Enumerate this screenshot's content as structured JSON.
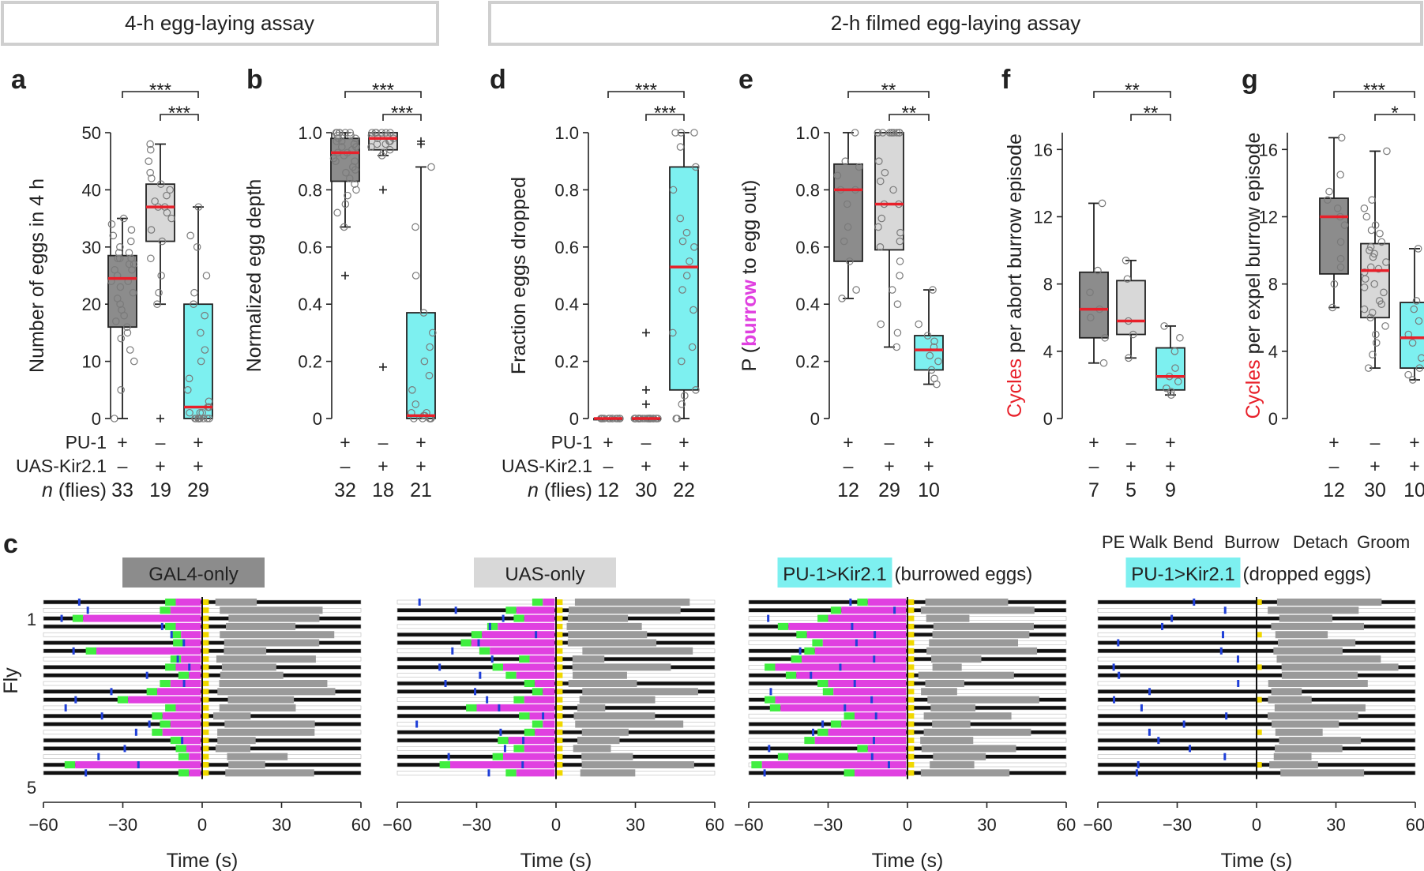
{
  "banners": [
    "4-h egg-laying assay",
    "2-h filmed egg-laying assay"
  ],
  "colors": {
    "grey": "#8c8c8c",
    "lightgrey": "#d8d8d8",
    "cyan": "#7df0f0",
    "red": "#e8202a",
    "magenta": "#e040e0",
    "green": "#40ee40",
    "blue": "#1f3fd8",
    "yellow": "#f0d800",
    "groom": "#9a9a9a"
  },
  "row_labels": [
    "PU-1",
    "UAS-Kir2.1",
    "n (flies)"
  ],
  "chart_data": [
    {
      "id": "a",
      "type": "box",
      "letter": "a",
      "ylabel": "Number of eggs in 4 h",
      "ylim": [
        0,
        50
      ],
      "yticks": [
        "0",
        "10",
        "20",
        "30",
        "40",
        "50"
      ],
      "groups": [
        {
          "genotype": [
            "+",
            "–"
          ],
          "n": "33",
          "color": "grey",
          "median": 24.5,
          "q1": 16,
          "q3": 28.5,
          "whislo": 0,
          "whishi": 35,
          "fliers": [],
          "points": [
            0,
            5,
            10,
            12,
            14,
            15,
            16,
            17,
            18,
            19,
            20,
            21,
            22,
            23,
            24,
            24,
            25,
            25,
            26,
            26,
            27,
            27,
            28,
            28,
            28,
            29,
            29,
            30,
            31,
            32,
            33,
            34,
            35
          ]
        },
        {
          "genotype": [
            "–",
            "+"
          ],
          "n": "19",
          "color": "lightgrey",
          "median": 37,
          "q1": 31,
          "q3": 41,
          "whislo": 20,
          "whishi": 48,
          "fliers": [
            0
          ],
          "points": [
            20,
            22,
            25,
            28,
            31,
            33,
            35,
            36,
            37,
            37,
            38,
            39,
            40,
            41,
            42,
            43,
            45,
            47,
            48
          ]
        },
        {
          "genotype": [
            "+",
            "+"
          ],
          "n": "29",
          "color": "cyan",
          "median": 2,
          "q1": 0,
          "q3": 20,
          "whislo": 0,
          "whishi": 37,
          "fliers": [],
          "points": [
            0,
            0,
            0,
            0,
            0,
            0,
            0,
            0,
            0,
            0,
            1,
            1,
            1,
            2,
            2,
            2,
            3,
            5,
            7,
            10,
            12,
            15,
            18,
            20,
            22,
            25,
            30,
            32,
            37
          ]
        }
      ],
      "sig": [
        "***",
        "***"
      ],
      "show_genotype_labels": true
    },
    {
      "id": "b",
      "type": "box",
      "letter": "b",
      "ylabel": "Normalized egg depth",
      "ylim": [
        0,
        1
      ],
      "yticks": [
        "0",
        "0.2",
        "0.4",
        "0.6",
        "0.8",
        "1.0"
      ],
      "groups": [
        {
          "genotype": [
            "+",
            "–"
          ],
          "n": "32",
          "color": "grey",
          "median": 0.93,
          "q1": 0.83,
          "q3": 0.98,
          "whislo": 0.67,
          "whishi": 1.0,
          "fliers": [
            0.5
          ],
          "points": [
            0.67,
            0.72,
            0.75,
            0.8,
            0.82,
            0.84,
            0.86,
            0.88,
            0.9,
            0.91,
            0.92,
            0.93,
            0.93,
            0.94,
            0.95,
            0.96,
            0.97,
            0.97,
            0.98,
            0.98,
            0.99,
            0.99,
            1.0,
            1.0,
            1.0,
            1.0,
            1.0,
            1.0,
            0.95,
            0.9,
            0.87,
            0.78
          ]
        },
        {
          "genotype": [
            "–",
            "+"
          ],
          "n": "18",
          "color": "lightgrey",
          "median": 0.98,
          "q1": 0.94,
          "q3": 1.0,
          "whislo": 0.92,
          "whishi": 1.0,
          "fliers": [
            0.8,
            0.18
          ],
          "points": [
            0.92,
            0.94,
            0.95,
            0.96,
            0.97,
            0.98,
            0.98,
            0.99,
            0.99,
            1.0,
            1.0,
            1.0,
            1.0,
            1.0,
            1.0,
            0.97,
            0.96,
            0.93
          ]
        },
        {
          "genotype": [
            "+",
            "+"
          ],
          "n": "21",
          "color": "cyan",
          "median": 0.01,
          "q1": 0.0,
          "q3": 0.37,
          "whislo": 0.0,
          "whishi": 0.88,
          "fliers": [
            0.97,
            0.96
          ],
          "points": [
            0.0,
            0.0,
            0.0,
            0.0,
            0.0,
            0.0,
            0.0,
            0.01,
            0.01,
            0.02,
            0.05,
            0.1,
            0.15,
            0.2,
            0.25,
            0.3,
            0.37,
            0.5,
            0.67,
            0.88,
            0.02
          ]
        }
      ],
      "sig": [
        "***",
        "***"
      ],
      "show_genotype_labels": false
    },
    {
      "id": "d",
      "type": "box",
      "letter": "d",
      "ylabel": "Fraction eggs dropped",
      "ylim": [
        0,
        1
      ],
      "yticks": [
        "0",
        "0.2",
        "0.4",
        "0.6",
        "0.8",
        "1.0"
      ],
      "groups": [
        {
          "genotype": [
            "+",
            "–"
          ],
          "n": "12",
          "color": "grey",
          "median": 0,
          "q1": 0,
          "q3": 0,
          "whislo": 0,
          "whishi": 0,
          "fliers": [],
          "points": [
            0,
            0,
            0,
            0,
            0,
            0,
            0,
            0,
            0,
            0,
            0,
            0
          ]
        },
        {
          "genotype": [
            "–",
            "+"
          ],
          "n": "30",
          "color": "lightgrey",
          "median": 0,
          "q1": 0,
          "q3": 0,
          "whislo": 0,
          "whishi": 0,
          "fliers": [
            0.3,
            0.1,
            0.05
          ],
          "points": [
            0,
            0,
            0,
            0,
            0,
            0,
            0,
            0,
            0,
            0,
            0,
            0,
            0,
            0,
            0,
            0,
            0,
            0,
            0,
            0,
            0,
            0,
            0,
            0,
            0,
            0,
            0
          ]
        },
        {
          "genotype": [
            "+",
            "+"
          ],
          "n": "22",
          "color": "cyan",
          "median": 0.53,
          "q1": 0.1,
          "q3": 0.88,
          "whislo": 0,
          "whishi": 1.0,
          "fliers": [],
          "points": [
            0,
            0,
            0.05,
            0.08,
            0.1,
            0.2,
            0.25,
            0.3,
            0.38,
            0.45,
            0.5,
            0.55,
            0.6,
            0.62,
            0.65,
            0.7,
            0.8,
            0.88,
            0.95,
            1.0,
            1.0,
            1.0
          ]
        }
      ],
      "sig": [
        "***",
        "***"
      ],
      "show_genotype_labels": true
    },
    {
      "id": "e",
      "type": "box",
      "letter": "e",
      "ylabel_parts": [
        "P (",
        "burrow",
        " to ",
        "egg out",
        ")"
      ],
      "ylim": [
        0,
        1
      ],
      "yticks": [
        "0",
        "0.2",
        "0.4",
        "0.6",
        "0.8",
        "1.0"
      ],
      "groups": [
        {
          "genotype": [
            "+",
            "–"
          ],
          "n": "12",
          "color": "grey",
          "median": 0.8,
          "q1": 0.55,
          "q3": 0.89,
          "whislo": 0.42,
          "whishi": 1.0,
          "fliers": [],
          "points": [
            0.42,
            0.45,
            0.55,
            0.62,
            0.67,
            0.75,
            0.8,
            0.8,
            0.85,
            0.88,
            0.9,
            1.0
          ]
        },
        {
          "genotype": [
            "–",
            "+"
          ],
          "n": "29",
          "color": "lightgrey",
          "median": 0.75,
          "q1": 0.59,
          "q3": 1.0,
          "whislo": 0.25,
          "whishi": 1.0,
          "fliers": [],
          "points": [
            0.25,
            0.3,
            0.33,
            0.4,
            0.45,
            0.5,
            0.55,
            0.6,
            0.62,
            0.65,
            0.67,
            0.7,
            0.75,
            0.75,
            0.8,
            0.83,
            0.86,
            0.9,
            1.0,
            1.0,
            1.0,
            1.0,
            1.0,
            1.0,
            1.0,
            1.0,
            1.0,
            1.0,
            1.0
          ]
        },
        {
          "genotype": [
            "+",
            "+"
          ],
          "n": "10",
          "color": "cyan",
          "median": 0.24,
          "q1": 0.17,
          "q3": 0.29,
          "whislo": 0.12,
          "whishi": 0.45,
          "fliers": [],
          "points": [
            0.12,
            0.14,
            0.17,
            0.2,
            0.22,
            0.25,
            0.27,
            0.29,
            0.33,
            0.45
          ]
        }
      ],
      "sig": [
        "**",
        "**"
      ],
      "show_genotype_labels": false
    },
    {
      "id": "f",
      "type": "box",
      "letter": "f",
      "ylabel_parts": [
        "Cycles",
        " per abort burrow episode"
      ],
      "ylim": [
        0,
        17
      ],
      "yticks": [
        "0",
        "4",
        "8",
        "12",
        "16"
      ],
      "ytick_values": [
        0,
        4,
        8,
        12,
        16
      ],
      "groups": [
        {
          "genotype": [
            "+",
            "–"
          ],
          "n": "7",
          "color": "grey",
          "median": 6.5,
          "q1": 4.8,
          "q3": 8.7,
          "whislo": 3.3,
          "whishi": 12.8,
          "fliers": [],
          "points": [
            3.3,
            4.8,
            6.0,
            6.5,
            7.5,
            8.8,
            12.8
          ]
        },
        {
          "genotype": [
            "–",
            "+"
          ],
          "n": "5",
          "color": "lightgrey",
          "median": 5.8,
          "q1": 5.0,
          "q3": 8.2,
          "whislo": 3.6,
          "whishi": 9.4,
          "fliers": [],
          "points": [
            3.6,
            5.0,
            5.8,
            8.3,
            9.4
          ]
        },
        {
          "genotype": [
            "+",
            "+"
          ],
          "n": "9",
          "color": "cyan",
          "median": 2.5,
          "q1": 1.7,
          "q3": 4.2,
          "whislo": 1.4,
          "whishi": 5.5,
          "fliers": [],
          "points": [
            1.4,
            1.6,
            1.8,
            2.2,
            2.5,
            3.0,
            4.0,
            4.8,
            5.5
          ]
        }
      ],
      "sig": [
        "**",
        "**"
      ],
      "show_genotype_labels": false
    },
    {
      "id": "g",
      "type": "box",
      "letter": "g",
      "ylabel_parts": [
        "Cycles",
        " per expel burrow episode"
      ],
      "ylim": [
        0,
        17
      ],
      "yticks": [
        "0",
        "4",
        "8",
        "12",
        "16"
      ],
      "ytick_values": [
        0,
        4,
        8,
        12,
        16
      ],
      "groups": [
        {
          "genotype": [
            "+",
            "–"
          ],
          "n": "12",
          "color": "grey",
          "median": 12,
          "q1": 8.6,
          "q3": 13.1,
          "whislo": 6.6,
          "whishi": 16.7,
          "fliers": [],
          "points": [
            6.6,
            8.0,
            9.0,
            9.5,
            10.5,
            11.5,
            12.0,
            12.5,
            13.0,
            13.5,
            14.5,
            16.7
          ]
        },
        {
          "genotype": [
            "–",
            "+"
          ],
          "n": "30",
          "color": "lightgrey",
          "median": 8.8,
          "q1": 6.0,
          "q3": 10.4,
          "whislo": 3.0,
          "whishi": 15.9,
          "fliers": [],
          "points": [
            3.0,
            3.8,
            4.5,
            5.0,
            5.5,
            6.0,
            6.3,
            6.8,
            7.0,
            7.5,
            8.0,
            8.3,
            8.7,
            8.9,
            9.0,
            9.3,
            9.6,
            10.0,
            10.2,
            10.5,
            11.0,
            11.5,
            12.0,
            12.5,
            13.0,
            9.8,
            7.8,
            6.5,
            15.9,
            11.2
          ]
        },
        {
          "genotype": [
            "+",
            "+"
          ],
          "n": "10",
          "color": "cyan",
          "median": 4.8,
          "q1": 3.0,
          "q3": 6.9,
          "whislo": 2.3,
          "whishi": 10.1,
          "fliers": [],
          "points": [
            2.3,
            2.6,
            3.0,
            3.6,
            4.5,
            5.0,
            5.8,
            6.5,
            7.0,
            10.1
          ]
        }
      ],
      "sig": [
        "***",
        "*"
      ],
      "show_genotype_labels": false
    },
    {
      "id": "c",
      "type": "ethogram",
      "letter": "c",
      "ylabel": "Fly",
      "xlabel": "Time (s)",
      "xlim": [
        -60,
        60
      ],
      "xticks": [
        "−60",
        "−30",
        "0",
        "30",
        "60"
      ],
      "legend": [
        "PE",
        "Walk",
        "Bend",
        "Burrow",
        "Detach",
        "Groom"
      ],
      "fly_labels": [
        "1",
        "5"
      ],
      "panels": [
        {
          "title": "GAL4-only",
          "title_color": "grey",
          "suffix": "",
          "burrow_starts": [
            -10,
            -12,
            -45,
            -10,
            -8,
            -7,
            -40,
            -8,
            -10,
            -5,
            -12,
            -17,
            -28,
            -10,
            -15,
            -12,
            -15,
            -8,
            -6,
            -5,
            -48,
            -5
          ]
        },
        {
          "title": "UAS-only",
          "title_color": "lightgrey",
          "suffix": "",
          "burrow_starts": [
            -5,
            -15,
            -12,
            -22,
            -28,
            -32,
            -25,
            -10,
            -20,
            -15,
            -8,
            -5,
            -12,
            -30,
            -10,
            -5,
            -8,
            -18,
            -12,
            -20,
            -40,
            -15
          ]
        },
        {
          "title": "PU-1>Kir2.1",
          "title_color": "cyan",
          "suffix": " (burrowed eggs)",
          "burrow_starts": [
            -15,
            -25,
            -30,
            -45,
            -38,
            -32,
            -35,
            -40,
            -50,
            -42,
            -30,
            -28,
            -50,
            -48,
            -20,
            -25,
            -30,
            -35,
            -15,
            -45,
            -55,
            -20
          ]
        },
        {
          "title": "PU-1>Kir2.1",
          "title_color": "cyan",
          "suffix": " (dropped eggs)",
          "burrow_starts": [
            0,
            0,
            0,
            0,
            0,
            0,
            0,
            0,
            0,
            0,
            0,
            0,
            0,
            0,
            0,
            0,
            0,
            0,
            0,
            0,
            0,
            0
          ]
        }
      ]
    }
  ]
}
